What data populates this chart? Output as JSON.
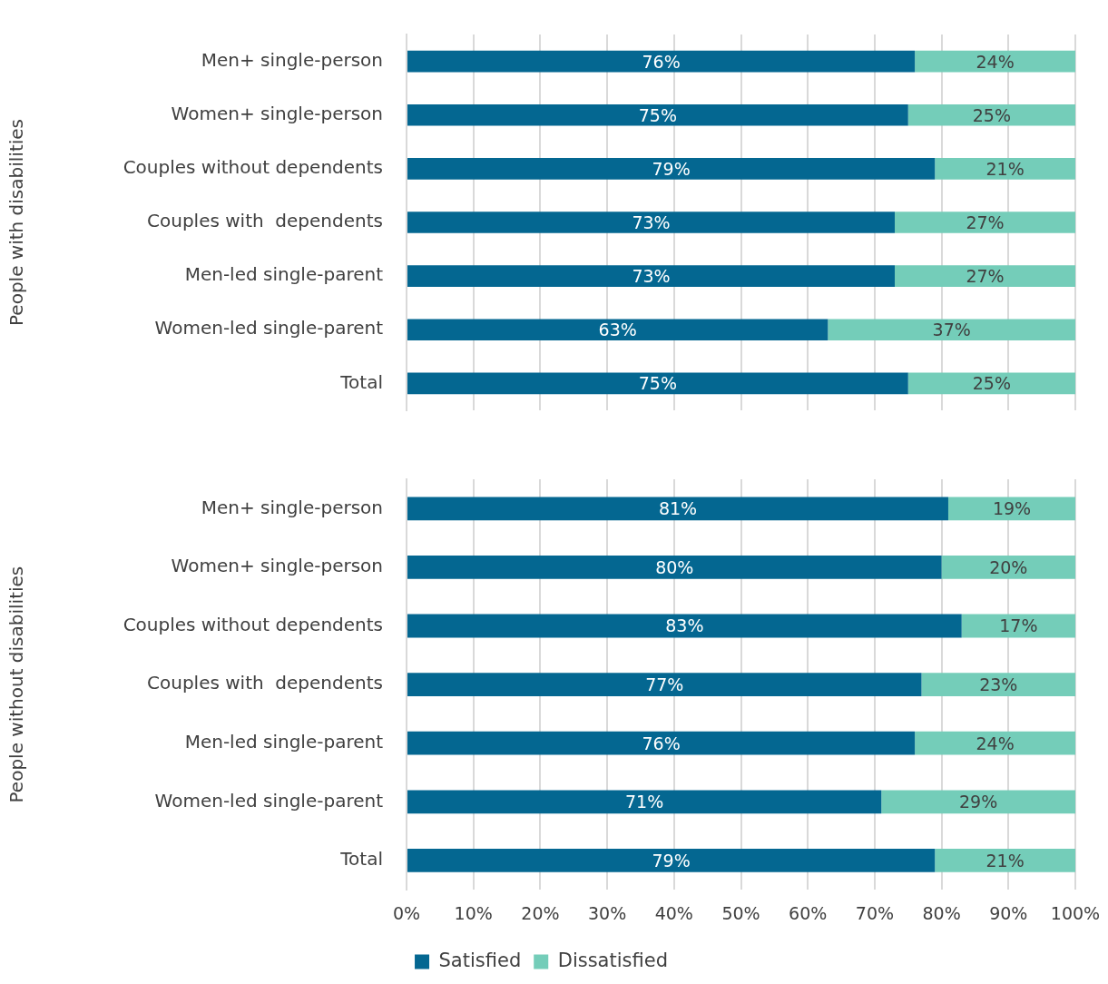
{
  "chart_data": [
    {
      "type": "bar",
      "orientation": "horizontal",
      "stacked": true,
      "ylabel": "People with disabilities",
      "categories": [
        "Men+ single-person",
        "Women+ single-person",
        "Couples without dependents",
        "Couples with  dependents",
        "Men-led single-parent",
        "Women-led single-parent",
        "Total"
      ],
      "series": [
        {
          "color": "#046791",
          "values": [
            76,
            75,
            79,
            73,
            73,
            63,
            75
          ],
          "value_labels": [
            "76%",
            "75%",
            "79%",
            "73%",
            "73%",
            "63%",
            "75%"
          ]
        },
        {
          "color": "#74cdb9",
          "values": [
            24,
            25,
            21,
            27,
            27,
            37,
            25
          ],
          "value_labels": [
            "24%",
            "25%",
            "21%",
            "27%",
            "27%",
            "37%",
            "25%"
          ]
        }
      ],
      "xlim": [
        0,
        100
      ],
      "xticks": [
        {
          "value": 0,
          "label": null
        },
        {
          "value": 10,
          "label": null
        },
        {
          "value": 20,
          "label": null
        },
        {
          "value": 30,
          "label": null
        },
        {
          "value": 40,
          "label": null
        },
        {
          "value": 50,
          "label": null
        },
        {
          "value": 60,
          "label": null
        },
        {
          "value": 70,
          "label": null
        },
        {
          "value": 80,
          "label": null
        },
        {
          "value": 90,
          "label": null
        },
        {
          "value": 100,
          "label": null
        }
      ],
      "grid": "x",
      "tick_labels": "y",
      "legend": false
    },
    {
      "type": "bar",
      "orientation": "horizontal",
      "stacked": true,
      "ylabel": "People without disabilities",
      "categories": [
        "Men+ single-person",
        "Women+ single-person",
        "Couples without dependents",
        "Couples with  dependents",
        "Men-led single-parent",
        "Women-led single-parent",
        "Total"
      ],
      "series": [
        {
          "name": "Satisfied",
          "color": "#046791",
          "values": [
            81,
            80,
            83,
            77,
            76,
            71,
            79
          ],
          "value_labels": [
            "81%",
            "80%",
            "83%",
            "77%",
            "76%",
            "71%",
            "79%"
          ]
        },
        {
          "name": "Dissatisfied",
          "color": "#74cdb9",
          "values": [
            19,
            20,
            17,
            23,
            24,
            29,
            21
          ],
          "value_labels": [
            "19%",
            "20%",
            "17%",
            "23%",
            "24%",
            "29%",
            "21%"
          ]
        }
      ],
      "xlim": [
        0,
        100
      ],
      "xticks": [
        {
          "value": 0,
          "label": "0%"
        },
        {
          "value": 10,
          "label": "10%"
        },
        {
          "value": 20,
          "label": "20%"
        },
        {
          "value": 30,
          "label": "30%"
        },
        {
          "value": 40,
          "label": "40%"
        },
        {
          "value": 50,
          "label": "50%"
        },
        {
          "value": 60,
          "label": "60%"
        },
        {
          "value": 70,
          "label": "70%"
        },
        {
          "value": 80,
          "label": "80%"
        },
        {
          "value": 90,
          "label": "90%"
        },
        {
          "value": 100,
          "label": "100%"
        }
      ],
      "grid": "x",
      "legend": "bottom"
    }
  ]
}
